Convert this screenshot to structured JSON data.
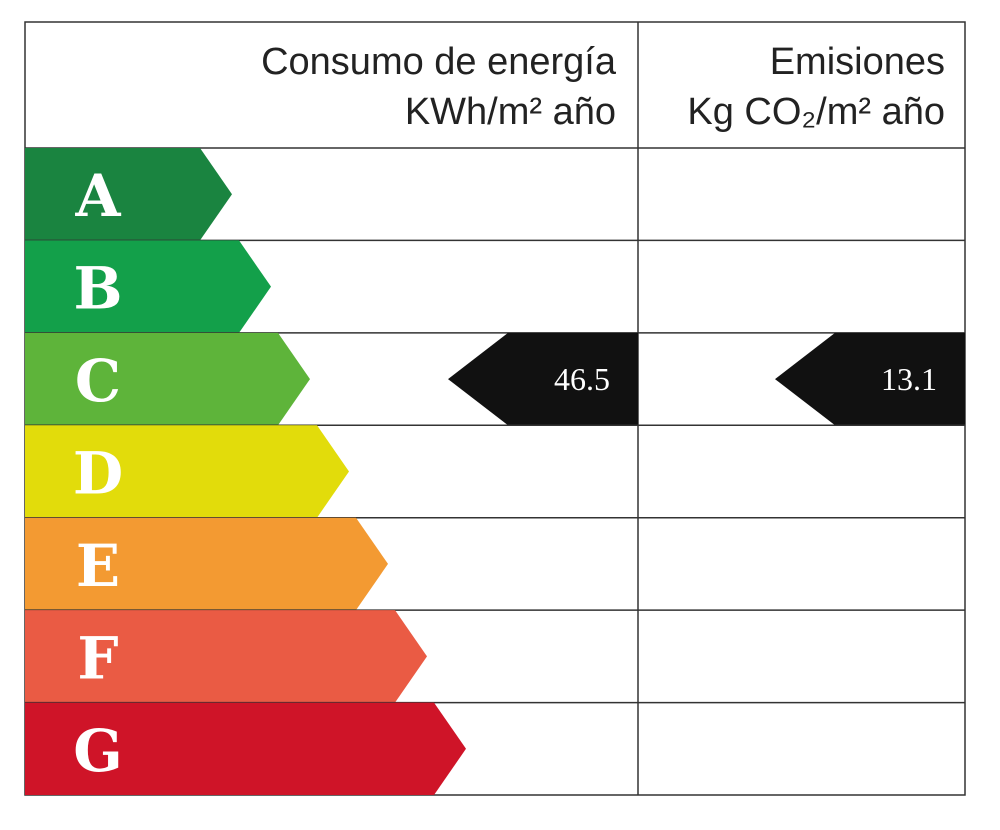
{
  "header": {
    "energy_title": "Consumo de energía",
    "energy_unit": "KWh/m² año",
    "emissions_title": "Emisiones",
    "emissions_unit": "Kg CO₂/m² año"
  },
  "rows": [
    {
      "letter": "A",
      "color": "#1a8440",
      "energy": null,
      "emissions": null
    },
    {
      "letter": "B",
      "color": "#13a04a",
      "energy": null,
      "emissions": null
    },
    {
      "letter": "C",
      "color": "#5eb43a",
      "energy": 46.5,
      "emissions": 13.1
    },
    {
      "letter": "D",
      "color": "#e2dc0b",
      "energy": null,
      "emissions": null
    },
    {
      "letter": "E",
      "color": "#f39a32",
      "energy": null,
      "emissions": null
    },
    {
      "letter": "F",
      "color": "#ea5b44",
      "energy": null,
      "emissions": null
    },
    {
      "letter": "G",
      "color": "#cf1428",
      "energy": null,
      "emissions": null
    }
  ]
}
